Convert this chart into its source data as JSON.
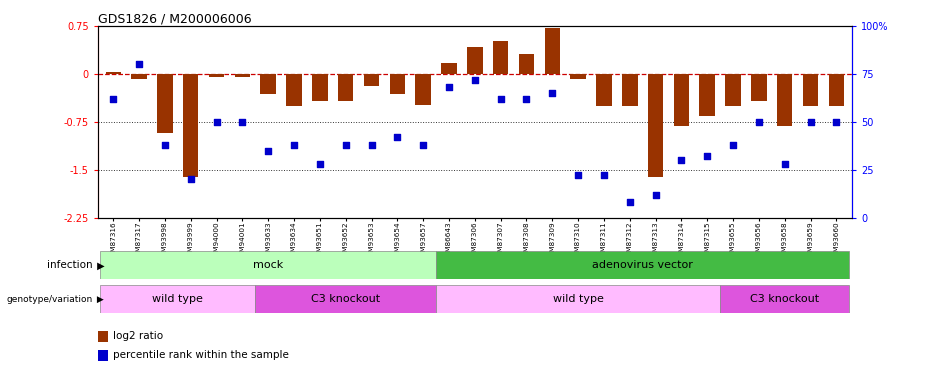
{
  "title": "GDS1826 / M200006006",
  "samples": [
    "GSM87316",
    "GSM87317",
    "GSM93998",
    "GSM93999",
    "GSM94000",
    "GSM94001",
    "GSM93633",
    "GSM93634",
    "GSM93651",
    "GSM93652",
    "GSM93653",
    "GSM93654",
    "GSM93657",
    "GSM86643",
    "GSM87306",
    "GSM87307",
    "GSM87308",
    "GSM87309",
    "GSM87310",
    "GSM87311",
    "GSM87312",
    "GSM87313",
    "GSM87314",
    "GSM87315",
    "GSM93655",
    "GSM93656",
    "GSM93658",
    "GSM93659",
    "GSM93660"
  ],
  "log2_ratio": [
    0.04,
    -0.08,
    -0.92,
    -1.62,
    -0.04,
    -0.04,
    -0.32,
    -0.5,
    -0.42,
    -0.42,
    -0.18,
    -0.32,
    -0.48,
    0.18,
    0.42,
    0.52,
    0.32,
    0.72,
    -0.08,
    -0.5,
    -0.5,
    -1.62,
    -0.82,
    -0.65,
    -0.5,
    -0.42,
    -0.82,
    -0.5,
    -0.5
  ],
  "percentile": [
    62,
    80,
    38,
    20,
    50,
    50,
    35,
    38,
    28,
    38,
    38,
    42,
    38,
    68,
    72,
    62,
    62,
    65,
    22,
    22,
    8,
    12,
    30,
    32,
    38,
    50,
    28,
    50,
    50
  ],
  "infection_groups": [
    {
      "label": "mock",
      "start": 0,
      "end": 12,
      "color": "#bbffbb"
    },
    {
      "label": "adenovirus vector",
      "start": 13,
      "end": 28,
      "color": "#44bb44"
    }
  ],
  "genotype_groups": [
    {
      "label": "wild type",
      "start": 0,
      "end": 5,
      "color": "#ffbbff"
    },
    {
      "label": "C3 knockout",
      "start": 6,
      "end": 12,
      "color": "#dd55dd"
    },
    {
      "label": "wild type",
      "start": 13,
      "end": 23,
      "color": "#ffbbff"
    },
    {
      "label": "C3 knockout",
      "start": 24,
      "end": 28,
      "color": "#dd55dd"
    }
  ],
  "ylim_left": [
    -2.25,
    0.75
  ],
  "ylim_right": [
    0,
    100
  ],
  "yticks_left": [
    0.75,
    0.0,
    -0.75,
    -1.5,
    -2.25
  ],
  "yticks_right": [
    100,
    75,
    50,
    25,
    0
  ],
  "bar_color": "#993300",
  "dot_color": "#0000cc",
  "hline_color": "#cc0000",
  "dotline_color": "#333333",
  "background_color": "#ffffff",
  "fig_width": 9.31,
  "fig_height": 3.75,
  "dpi": 100
}
